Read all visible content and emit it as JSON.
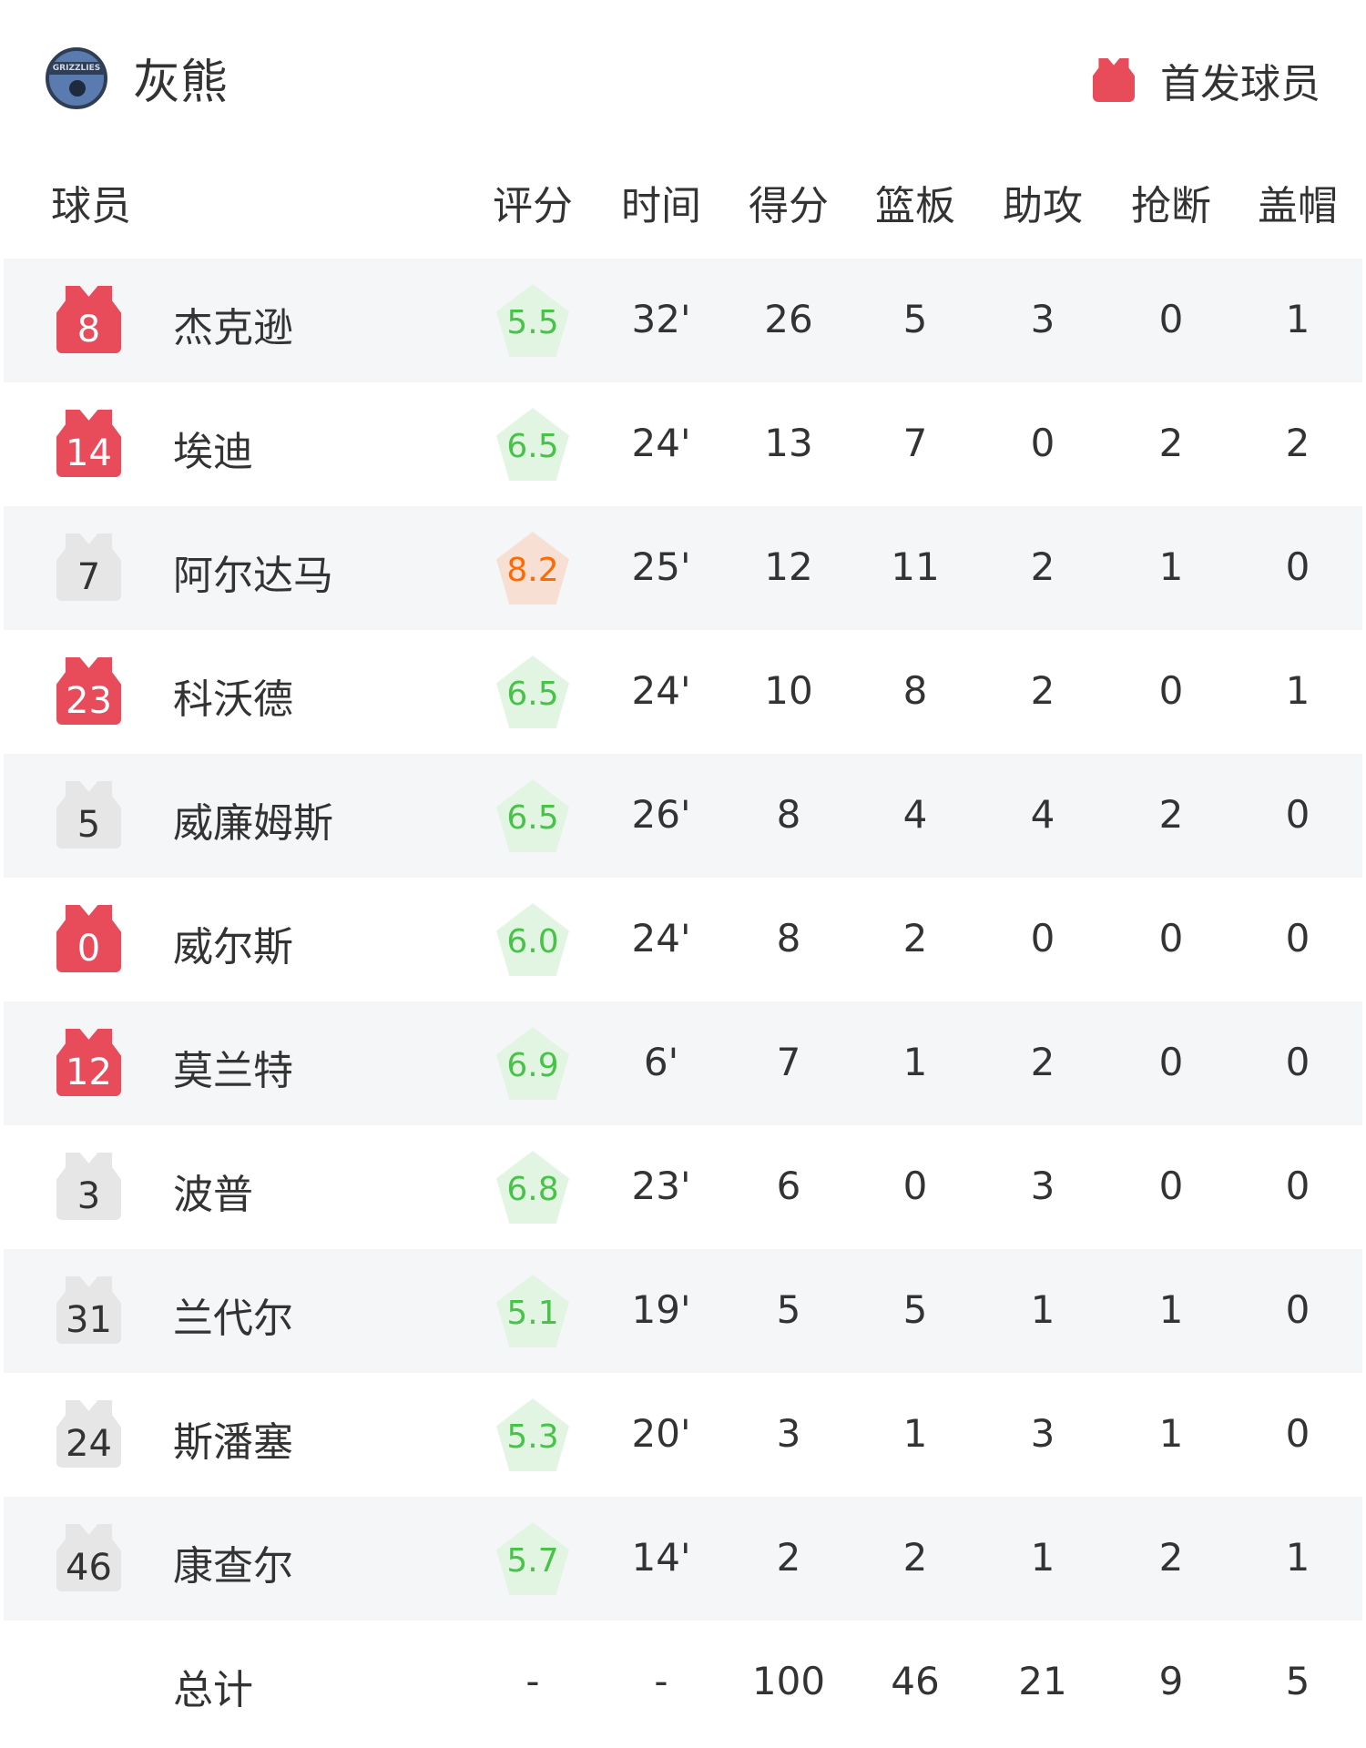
{
  "team": {
    "name": "灰熊",
    "logo_text": "GRIZZLIES"
  },
  "legend": {
    "label": "首发球员",
    "color": "#e84c5a"
  },
  "columns": [
    "球员",
    "评分",
    "时间",
    "得分",
    "篮板",
    "助攻",
    "抢断",
    "盖帽"
  ],
  "players": [
    {
      "number": "8",
      "name": "杰克逊",
      "starter": true,
      "rating": "5.5",
      "rating_level": "green",
      "stats": [
        "32'",
        "26",
        "5",
        "3",
        "0",
        "1"
      ]
    },
    {
      "number": "14",
      "name": "埃迪",
      "starter": true,
      "rating": "6.5",
      "rating_level": "green",
      "stats": [
        "24'",
        "13",
        "7",
        "0",
        "2",
        "2"
      ]
    },
    {
      "number": "7",
      "name": "阿尔达马",
      "starter": false,
      "rating": "8.2",
      "rating_level": "orange",
      "stats": [
        "25'",
        "12",
        "11",
        "2",
        "1",
        "0"
      ]
    },
    {
      "number": "23",
      "name": "科沃德",
      "starter": true,
      "rating": "6.5",
      "rating_level": "green",
      "stats": [
        "24'",
        "10",
        "8",
        "2",
        "0",
        "1"
      ]
    },
    {
      "number": "5",
      "name": "威廉姆斯",
      "starter": false,
      "rating": "6.5",
      "rating_level": "green",
      "stats": [
        "26'",
        "8",
        "4",
        "4",
        "2",
        "0"
      ]
    },
    {
      "number": "0",
      "name": "威尔斯",
      "starter": true,
      "rating": "6.0",
      "rating_level": "green",
      "stats": [
        "24'",
        "8",
        "2",
        "0",
        "0",
        "0"
      ]
    },
    {
      "number": "12",
      "name": "莫兰特",
      "starter": true,
      "rating": "6.9",
      "rating_level": "green",
      "stats": [
        "6'",
        "7",
        "1",
        "2",
        "0",
        "0"
      ]
    },
    {
      "number": "3",
      "name": "波普",
      "starter": false,
      "rating": "6.8",
      "rating_level": "green",
      "stats": [
        "23'",
        "6",
        "0",
        "3",
        "0",
        "0"
      ]
    },
    {
      "number": "31",
      "name": "兰代尔",
      "starter": false,
      "rating": "5.1",
      "rating_level": "green",
      "stats": [
        "19'",
        "5",
        "5",
        "1",
        "1",
        "0"
      ]
    },
    {
      "number": "24",
      "name": "斯潘塞",
      "starter": false,
      "rating": "5.3",
      "rating_level": "green",
      "stats": [
        "20'",
        "3",
        "1",
        "3",
        "1",
        "0"
      ]
    },
    {
      "number": "46",
      "name": "康查尔",
      "starter": false,
      "rating": "5.7",
      "rating_level": "green",
      "stats": [
        "14'",
        "2",
        "2",
        "1",
        "2",
        "1"
      ]
    }
  ],
  "totals": {
    "label": "总计",
    "values": [
      "-",
      "-",
      "100",
      "46",
      "21",
      "9",
      "5"
    ]
  },
  "colors": {
    "starter_jersey": "#e84c5a",
    "bench_jersey": "#e6e6e6",
    "rating_green": "#47c447",
    "rating_orange": "#ff6a00",
    "row_alt": "#f5f6f8"
  }
}
